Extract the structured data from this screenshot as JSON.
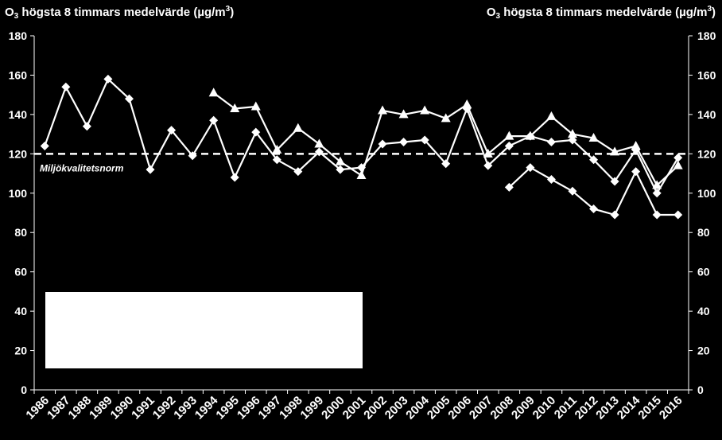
{
  "chart_data": {
    "type": "line",
    "y_axis_title_left": {
      "prefix": "O",
      "sub": "3",
      "middle": " högsta 8 timmars medelvärde (µg/m",
      "sup": "3",
      "suffix": ")"
    },
    "y_axis_title_right": {
      "prefix": "O",
      "sub": "3",
      "middle": " högsta 8 timmars medelvärde (µg/m",
      "sup": "3",
      "suffix": ")"
    },
    "categories": [
      "1986",
      "1987",
      "1988",
      "1989",
      "1990",
      "1991",
      "1992",
      "1993",
      "1994",
      "1995",
      "1996",
      "1997",
      "1998",
      "1999",
      "2000",
      "2001",
      "2002",
      "2003",
      "2004",
      "2005",
      "2006",
      "2007",
      "2008",
      "2009",
      "2010",
      "2011",
      "2012",
      "2013",
      "2014",
      "2015",
      "2016"
    ],
    "ylim": [
      0,
      180
    ],
    "yticks": [
      0,
      20,
      40,
      60,
      80,
      100,
      120,
      140,
      160,
      180
    ],
    "norm": {
      "value": 120,
      "label": "Miljökvalitetsnorm"
    },
    "legend_box": "bottom-left, white box, no visible entries",
    "colors": {
      "background": "#000000",
      "line": "#ffffff",
      "norm": "#ffffff"
    },
    "series": [
      {
        "marker": "diamond",
        "values": [
          124,
          154,
          134,
          158,
          148,
          112,
          132,
          119,
          137,
          108,
          131,
          117,
          111,
          121,
          112,
          113,
          125,
          126,
          127,
          115,
          143,
          114,
          124,
          129,
          126,
          127,
          117,
          106,
          122,
          100,
          118
        ]
      },
      {
        "marker": "triangle",
        "values": [
          null,
          null,
          null,
          null,
          null,
          null,
          null,
          null,
          151,
          143,
          144,
          122,
          133,
          125,
          116,
          109,
          142,
          140,
          142,
          138,
          145,
          120,
          129,
          129,
          139,
          130,
          128,
          121,
          124,
          104,
          114
        ]
      },
      {
        "marker": "diamond",
        "values": [
          null,
          null,
          null,
          null,
          null,
          null,
          null,
          null,
          null,
          null,
          null,
          null,
          null,
          null,
          null,
          null,
          null,
          null,
          null,
          null,
          null,
          null,
          103,
          113,
          107,
          101,
          92,
          89,
          111,
          89,
          89
        ]
      }
    ]
  }
}
